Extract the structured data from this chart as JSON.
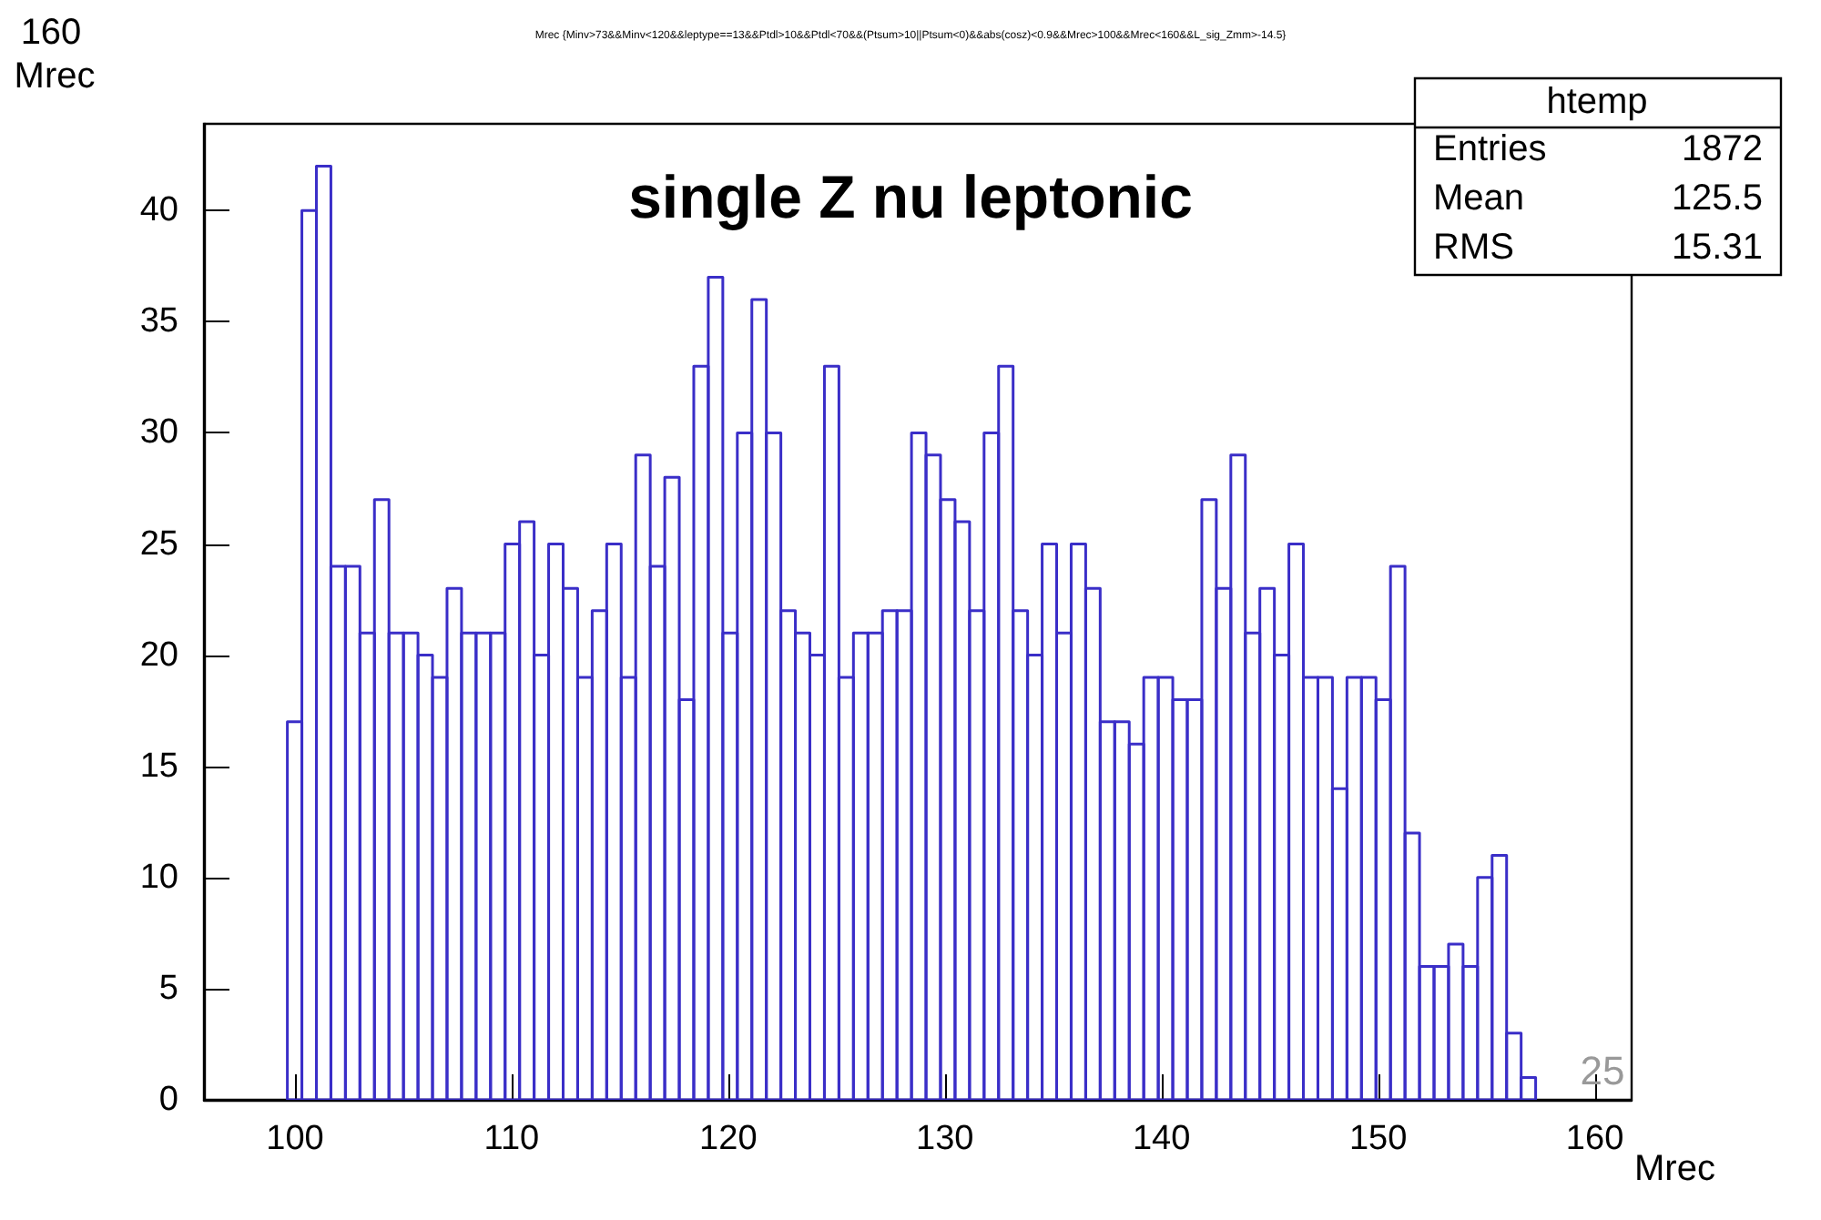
{
  "chart_data": {
    "type": "histogram",
    "title": "Mrec {Minv>73&&Minv<120&&leptype==13&&Ptdl>10&&Ptdl<70&&(Ptsum>10||Ptsum<0)&&abs(cosz)<0.9&&Mrec>100&&Mrec<160&&L_sig_Zmm>-14.5}",
    "xlabel": "Mrec",
    "color": "#3a2ec8",
    "bins": [
      99.65,
      100.32,
      100.99,
      101.66,
      102.33,
      103.0,
      103.67,
      104.34,
      105.01,
      105.68,
      106.35,
      107.02,
      107.69,
      108.36,
      109.03,
      109.7,
      110.37,
      111.04,
      111.71,
      112.38,
      113.05,
      113.72,
      114.39,
      115.06,
      115.73,
      116.4,
      117.07,
      117.74,
      118.41,
      119.08,
      119.75,
      120.42,
      121.09,
      121.76,
      122.43,
      123.1,
      123.77,
      124.44,
      125.11,
      125.78,
      126.45,
      127.12,
      127.79,
      128.46,
      129.13,
      129.8,
      130.47,
      131.14,
      131.81,
      132.48,
      133.15,
      133.82,
      134.49,
      135.16,
      135.83,
      136.5,
      137.17,
      137.84,
      138.51,
      139.18,
      139.85,
      140.52,
      141.19,
      141.86,
      142.53,
      143.2,
      143.87,
      144.54,
      145.21,
      145.88,
      146.55,
      147.22,
      147.89,
      148.56,
      149.23,
      149.9,
      150.57,
      151.24,
      151.91,
      152.58,
      153.25,
      153.92,
      154.59,
      155.26,
      155.93,
      156.6,
      157.27
    ],
    "values": [
      17,
      40,
      42,
      24,
      24,
      21,
      27,
      21,
      21,
      20,
      19,
      23,
      21,
      21,
      21,
      25,
      26,
      20,
      25,
      23,
      19,
      22,
      25,
      19,
      29,
      24,
      28,
      18,
      33,
      37,
      21,
      30,
      36,
      30,
      22,
      21,
      20,
      33,
      19,
      21,
      21,
      22,
      22,
      30,
      29,
      27,
      26,
      22,
      30,
      33,
      22,
      20,
      25,
      21,
      25,
      23,
      17,
      17,
      16,
      19,
      19,
      18,
      18,
      27,
      23,
      29,
      21,
      23,
      20,
      25,
      19,
      19,
      14,
      19,
      19,
      18,
      24,
      12,
      6,
      6,
      7,
      6,
      10,
      11,
      3,
      1
    ],
    "xlim": [
      95.8,
      161.7
    ],
    "xticks": [
      100,
      110,
      120,
      130,
      140,
      150,
      160
    ],
    "ylim": [
      0,
      43.9
    ],
    "yticks": [
      0,
      5,
      10,
      15,
      20,
      25,
      30,
      35,
      40
    ],
    "grid": false,
    "annotations": [
      "single Z nu leptonic",
      "htemp",
      "Entries",
      "1872",
      "Mean",
      "125.5",
      "RMS",
      "15.31",
      "160",
      "Mrec",
      "25"
    ]
  }
}
